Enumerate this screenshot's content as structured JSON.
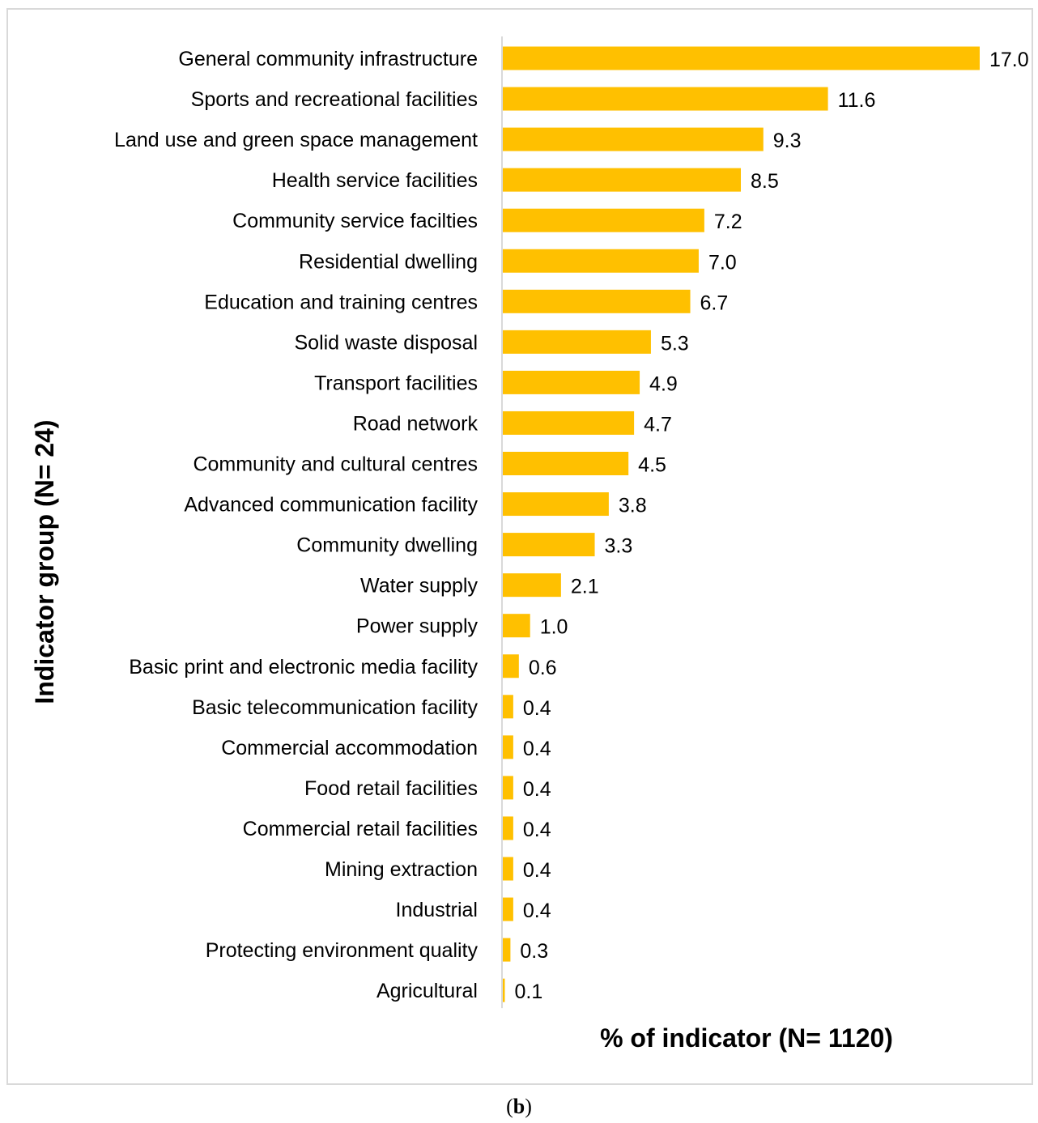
{
  "chart_data": {
    "type": "bar",
    "orientation": "horizontal",
    "categories": [
      "General community infrastructure",
      "Sports and recreational facilities",
      "Land use and green space management",
      "Health service facilities",
      "Community service facilties",
      "Residential dwelling",
      "Education and training centres",
      "Solid waste disposal",
      "Transport facilities",
      "Road network",
      "Community and cultural centres",
      "Advanced communication facility",
      "Community dwelling",
      "Water supply",
      "Power supply",
      "Basic print and electronic media facility",
      "Basic telecommunication facility",
      "Commercial accommodation",
      "Food retail facilities",
      "Commercial retail facilities",
      "Mining extraction",
      "Industrial",
      "Protecting environment quality",
      "Agricultural"
    ],
    "values": [
      17.0,
      11.6,
      9.3,
      8.5,
      7.2,
      7.0,
      6.7,
      5.3,
      4.9,
      4.7,
      4.5,
      3.8,
      3.3,
      2.1,
      1.0,
      0.6,
      0.4,
      0.4,
      0.4,
      0.4,
      0.4,
      0.4,
      0.3,
      0.1
    ],
    "value_labels": [
      "17.0",
      "11.6",
      "9.3",
      "8.5",
      "7.2",
      "7.0",
      "6.7",
      "5.3",
      "4.9",
      "4.7",
      "4.5",
      "3.8",
      "3.3",
      "2.1",
      "1.0",
      "0.6",
      "0.4",
      "0.4",
      "0.4",
      "0.4",
      "0.4",
      "0.4",
      "0.3",
      "0.1"
    ],
    "xlabel": "% of indicator (N= 1120)",
    "ylabel": "Indicator group (N= 24)",
    "xlim": [
      0,
      17
    ],
    "bar_color": "#FFC000",
    "axis_color": "#d9d9d9",
    "grid": false,
    "legend": "none"
  },
  "caption": {
    "open": "(",
    "letter": "b",
    "close": ")"
  }
}
